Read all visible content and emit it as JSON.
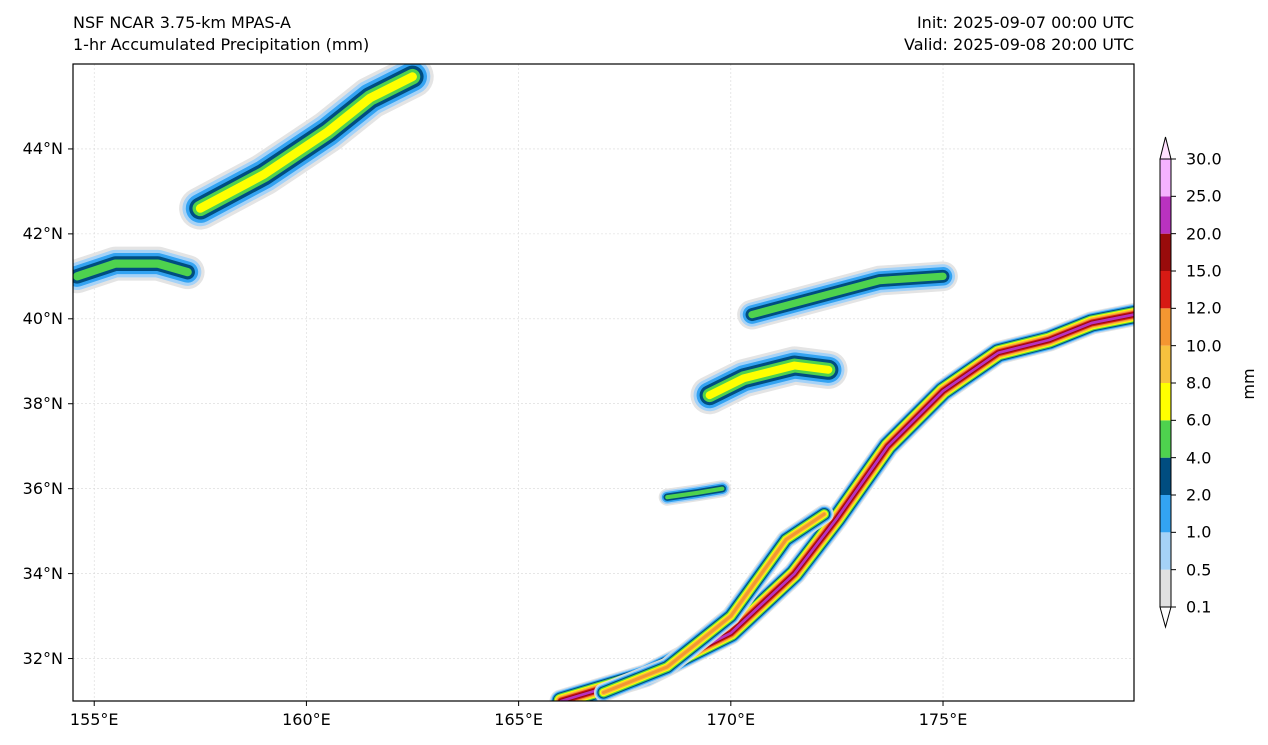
{
  "title": {
    "model": "NSF NCAR 3.75-km MPAS-A",
    "field": "1-hr Accumulated Precipitation (mm)",
    "init": "Init: 2025-09-07 00:00 UTC",
    "valid": "Valid: 2025-09-08 20:00 UTC"
  },
  "map": {
    "lat_ticks": [
      {
        "value": 44,
        "label": "44°N"
      },
      {
        "value": 42,
        "label": "42°N"
      },
      {
        "value": 40,
        "label": "40°N"
      },
      {
        "value": 38,
        "label": "38°N"
      },
      {
        "value": 36,
        "label": "36°N"
      },
      {
        "value": 34,
        "label": "34°N"
      },
      {
        "value": 32,
        "label": "32°N"
      }
    ],
    "lon_ticks": [
      {
        "value": 155,
        "label": "155°E"
      },
      {
        "value": 160,
        "label": "160°E"
      },
      {
        "value": 165,
        "label": "165°E"
      },
      {
        "value": 170,
        "label": "170°E"
      },
      {
        "value": 175,
        "label": "175°E"
      }
    ],
    "lat_range": [
      31,
      46
    ],
    "lon_range": [
      154.5,
      179.5
    ],
    "gridlines": true
  },
  "colorbar": {
    "unit": "mm",
    "levels": [
      "0.1",
      "0.5",
      "1.0",
      "2.0",
      "4.0",
      "6.0",
      "8.0",
      "10.0",
      "12.0",
      "15.0",
      "20.0",
      "25.0",
      "30.0"
    ],
    "colors": [
      "#e1e1e1",
      "#a5d2f7",
      "#33a3f2",
      "#004d80",
      "#4ed24e",
      "#ffff00",
      "#f7c13e",
      "#f49631",
      "#d71a14",
      "#990b0b",
      "#b932c0",
      "#f5b2ff"
    ],
    "extend_low_color": "#ffffff",
    "extend_high_color": "#ffe0ff"
  },
  "chart_data": {
    "type": "heatmap",
    "variable": "1-hr Accumulated Precipitation",
    "unit": "mm",
    "features": [
      {
        "name": "band",
        "path": [
          [
            157.5,
            42.6
          ],
          [
            159.0,
            43.4
          ],
          [
            160.5,
            44.4
          ],
          [
            161.5,
            45.2
          ],
          [
            162.5,
            45.7
          ]
        ],
        "width_deg": 1.0,
        "max_level": 5
      },
      {
        "name": "band",
        "path": [
          [
            154.6,
            41.0
          ],
          [
            155.5,
            41.3
          ],
          [
            156.5,
            41.3
          ],
          [
            157.2,
            41.1
          ]
        ],
        "width_deg": 0.8,
        "max_level": 4
      },
      {
        "name": "cluster",
        "path": [
          [
            169.5,
            38.2
          ],
          [
            170.3,
            38.6
          ],
          [
            171.5,
            38.9
          ],
          [
            172.3,
            38.8
          ]
        ],
        "width_deg": 0.9,
        "max_level": 5
      },
      {
        "name": "cluster",
        "path": [
          [
            170.5,
            40.1
          ],
          [
            172.0,
            40.5
          ],
          [
            173.5,
            40.9
          ],
          [
            175.0,
            41.0
          ]
        ],
        "width_deg": 0.7,
        "max_level": 4
      },
      {
        "name": "cluster",
        "path": [
          [
            168.5,
            35.8
          ],
          [
            169.2,
            35.9
          ],
          [
            169.8,
            36.0
          ]
        ],
        "width_deg": 0.4,
        "max_level": 4
      },
      {
        "name": "front",
        "path": [
          [
            166.0,
            31.0
          ],
          [
            168.0,
            31.6
          ],
          [
            170.0,
            32.6
          ],
          [
            171.5,
            34.0
          ],
          [
            172.5,
            35.3
          ],
          [
            173.7,
            37.0
          ],
          [
            175.0,
            38.3
          ],
          [
            176.3,
            39.2
          ],
          [
            177.5,
            39.5
          ],
          [
            178.5,
            39.9
          ],
          [
            179.5,
            40.1
          ]
        ],
        "width_deg": 0.55,
        "max_level": 10
      },
      {
        "name": "front-branch",
        "path": [
          [
            167.0,
            31.2
          ],
          [
            168.5,
            31.8
          ],
          [
            170.0,
            33.0
          ],
          [
            171.3,
            34.8
          ],
          [
            172.2,
            35.4
          ]
        ],
        "width_deg": 0.45,
        "max_level": 7
      }
    ]
  }
}
